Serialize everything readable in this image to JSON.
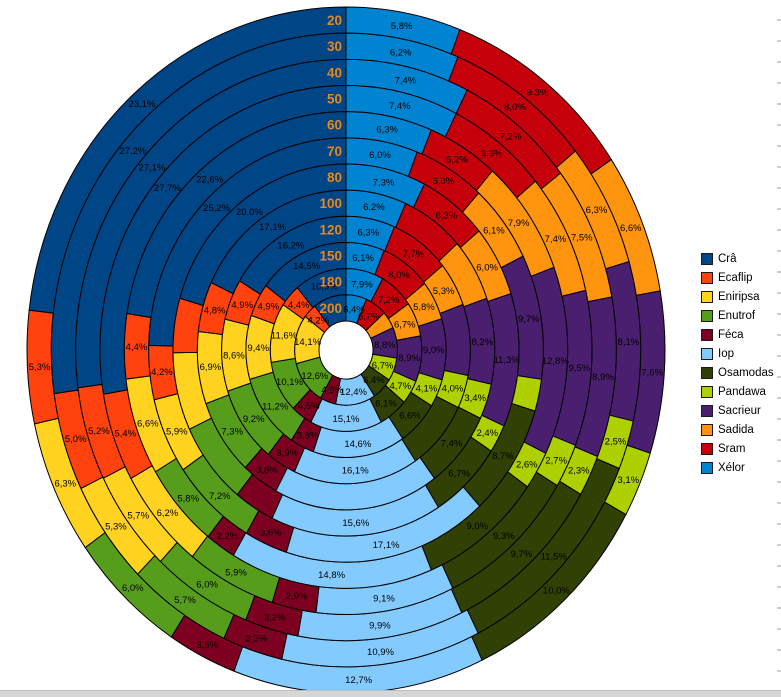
{
  "chart_data": {
    "type": "pie",
    "subtype": "multi-ring-donut",
    "rings": [
      "20",
      "30",
      "40",
      "50",
      "60",
      "70",
      "80",
      "100",
      "120",
      "150",
      "180",
      "200"
    ],
    "ring_order": "outermost-to-innermost",
    "ring_label_color": "#e8871a",
    "legend_position": "right",
    "grid": false,
    "series": [
      {
        "name": "Crâ",
        "color": "#004586",
        "values": [
          23.1,
          27.2,
          27.1,
          27.7,
          22.6,
          25.2,
          20.0,
          17.1,
          16.2,
          14.5,
          10.9,
          10.2
        ],
        "labels": [
          "23,1%",
          "27,2%",
          "27,1%",
          "27,7%",
          "22,6%",
          "25,2%",
          "20,0%",
          "17,1%",
          "16,2%",
          "14,5%",
          "10,9%",
          null
        ]
      },
      {
        "name": "Ecaflip",
        "color": "#ff420e",
        "values": [
          5.3,
          5.0,
          5.2,
          5.4,
          4.4,
          4.2,
          4.6,
          4.8,
          4.9,
          4.9,
          4.4,
          4.2
        ],
        "labels": [
          "5,3%",
          "5,0%",
          "5,2%",
          "5,4%",
          "4,4%",
          "4,2%",
          null,
          "4,8%",
          "4,9%",
          "4,9%",
          "4,4%",
          "4,2%"
        ]
      },
      {
        "name": "Eniripsa",
        "color": "#ffd320",
        "values": [
          6.3,
          5.3,
          5.7,
          6.2,
          6.6,
          5.9,
          6.6,
          6.9,
          8.6,
          9.4,
          11.6,
          14.1
        ],
        "labels": [
          "6,3%",
          "5,3%",
          "5,7%",
          "6,2%",
          "6,6%",
          "5,9%",
          null,
          "6,9%",
          "8,6%",
          "9,4%",
          "11,6%",
          "14,1%"
        ]
      },
      {
        "name": "Enutrof",
        "color": "#579d1c",
        "values": [
          6.0,
          5.7,
          6.0,
          5.9,
          5.8,
          7.2,
          7.0,
          7.3,
          9.2,
          11.2,
          10.1,
          12.6
        ],
        "labels": [
          "6,0%",
          "5,7%",
          "6,0%",
          "5,9%",
          "5,8%",
          "7,2%",
          null,
          "7,3%",
          "9,2%",
          "11,2%",
          "10,1%",
          "12,6%"
        ]
      },
      {
        "name": "Féca",
        "color": "#7e0021",
        "values": [
          3.5,
          3.3,
          3.2,
          2.9,
          2.2,
          3.6,
          3.7,
          3.8,
          3.9,
          3.8,
          4.5,
          4.9
        ],
        "labels": [
          "3,5%",
          "3,3%",
          "3,2%",
          "2,9%",
          "2,2%",
          "3,6%",
          null,
          "3,8%",
          "3,9%",
          "3,8%",
          "4,5%",
          "4,9%"
        ]
      },
      {
        "name": "Iop",
        "color": "#83caff",
        "values": [
          12.7,
          10.9,
          9.9,
          9.1,
          14.8,
          17.1,
          15.6,
          17.0,
          16.1,
          14.6,
          15.1,
          12.4
        ],
        "labels": [
          "12,7%",
          "10,9%",
          "9,9%",
          "9,1%",
          "14,8%",
          "17,1%",
          "15,6%",
          null,
          "16,1%",
          "14,6%",
          "15,1%",
          "12,4%"
        ]
      },
      {
        "name": "Osamodas",
        "color": "#314004",
        "values": [
          10.0,
          11.5,
          9.7,
          9.3,
          9.0,
          8.7,
          6.7,
          7.4,
          8.4,
          6.6,
          6.1,
          6.4
        ],
        "labels": [
          "10,0%",
          "11,5%",
          "9,7%",
          "9,3%",
          "9,0%",
          "8,7%",
          "6,7%",
          "7,4%",
          null,
          "6,6%",
          "6,1%",
          "6,4%"
        ]
      },
      {
        "name": "Pandawa",
        "color": "#aecf00",
        "values": [
          3.1,
          2.5,
          2.3,
          2.7,
          2.6,
          2.5,
          2.4,
          3.4,
          4.0,
          4.1,
          4.7,
          6.7
        ],
        "labels": [
          "3,1%",
          "2,5%",
          "2,3%",
          "2,7%",
          "2,6%",
          null,
          "2,4%",
          "3,4%",
          "4,0%",
          "4,1%",
          "4,7%",
          "6,7%"
        ]
      },
      {
        "name": "Sacrieur",
        "color": "#4b1f6f",
        "values": [
          7.6,
          8.1,
          8.9,
          9.5,
          12.8,
          9.7,
          11.3,
          8.2,
          8.5,
          9.0,
          8.9,
          8.8
        ],
        "labels": [
          "7,6%",
          "8,1%",
          "8,9%",
          "9,5%",
          "12,8%",
          "9,7%",
          "11,3%",
          "8,2%",
          null,
          "9,0%",
          "8,9%",
          "8,8%"
        ]
      },
      {
        "name": "Sadida",
        "color": "#ff950e",
        "values": [
          6.6,
          6.3,
          7.5,
          7.4,
          7.9,
          6.1,
          6.0,
          6.0,
          5.3,
          5.8,
          6.7,
          5.0
        ],
        "labels": [
          "6,6%",
          "6,3%",
          "7,5%",
          "7,4%",
          "7,9%",
          "6,1%",
          "6,0%",
          null,
          "5,3%",
          "5,8%",
          "6,7%",
          null
        ]
      },
      {
        "name": "Sram",
        "color": "#c5000b",
        "values": [
          9.8,
          8.0,
          7.2,
          6.6,
          5.2,
          6.0,
          6.3,
          6.5,
          7.7,
          8.0,
          7.2,
          6.7
        ],
        "labels": [
          "9,8%",
          "8,0%",
          "7,2%",
          "6,6%",
          "5,2%",
          "6,0%",
          "6,3%",
          null,
          "7,7%",
          "8,0%",
          "7,2%",
          "6,7%"
        ]
      },
      {
        "name": "Xélor",
        "color": "#0084d1",
        "values": [
          5.8,
          6.2,
          7.4,
          7.4,
          6.3,
          6.0,
          7.3,
          6.2,
          6.3,
          6.1,
          7.9,
          6.4
        ],
        "labels": [
          "5,8%",
          "6,2%",
          "7,4%",
          "7,4%",
          "6,3%",
          "6,0%",
          "7,3%",
          "6,2%",
          "6,3%",
          "6,1%",
          "7,9%",
          "6,4%"
        ]
      }
    ]
  },
  "legend": {
    "items": [
      "Crâ",
      "Ecaflip",
      "Eniripsa",
      "Enutrof",
      "Féca",
      "Iop",
      "Osamodas",
      "Pandawa",
      "Sacrieur",
      "Sadida",
      "Sram",
      "Xélor"
    ]
  }
}
